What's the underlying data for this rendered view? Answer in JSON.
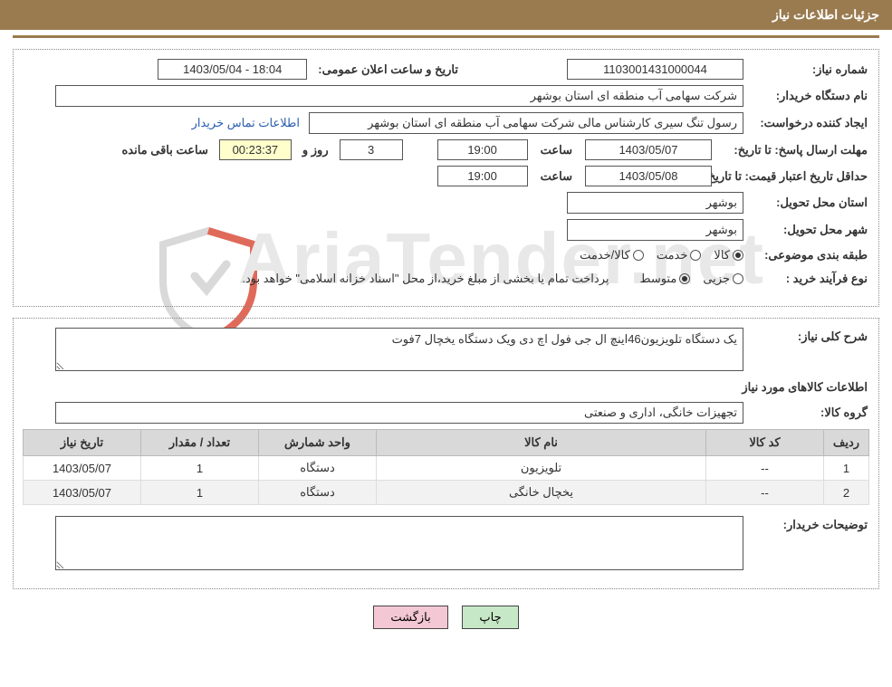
{
  "header": {
    "title": "جزئیات اطلاعات نیاز"
  },
  "watermark": {
    "text_a": "AriaTender",
    "text_b": ".net",
    "shield_stroke": "#d04b3a"
  },
  "top": {
    "need_no_label": "شماره نیاز:",
    "need_no": "1103001431000044",
    "announce_label": "تاریخ و ساعت اعلان عمومی:",
    "announce_value": "1403/05/04 - 18:04",
    "buyer_label": "نام دستگاه خریدار:",
    "buyer_value": "شرکت سهامی آب منطقه ای استان بوشهر",
    "creator_label": "ایجاد کننده درخواست:",
    "creator_value": "رسول تنگ سیری کارشناس مالی شرکت سهامی آب منطقه ای استان بوشهر",
    "buyer_contact_link": "اطلاعات تماس خریدار",
    "deadline_label": "مهلت ارسال پاسخ: تا تاریخ:",
    "deadline_date": "1403/05/07",
    "time_label": "ساعت",
    "deadline_time": "19:00",
    "days_and_label": "روز و",
    "remaining_days": "3",
    "remaining_time": "00:23:37",
    "remaining_suffix": "ساعت باقی مانده",
    "validity_label": "حداقل تاریخ اعتبار قیمت: تا تاریخ:",
    "validity_date": "1403/05/08",
    "validity_time": "19:00",
    "delivery_province_label": "استان محل تحویل:",
    "delivery_province": "بوشهر",
    "delivery_city_label": "شهر محل تحویل:",
    "delivery_city": "بوشهر",
    "classification_label": "طبقه بندی موضوعی:",
    "class_goods": "کالا",
    "class_service": "خدمت",
    "class_goods_service": "کالا/خدمت",
    "class_selected": "goods",
    "purchase_type_label": "نوع فرآیند خرید :",
    "purchase_minor": "جزیی",
    "purchase_medium": "متوسط",
    "purchase_selected": "medium",
    "purchase_note": "پرداخت تمام یا بخشی از مبلغ خرید،از محل \"اسناد خزانه اسلامی\" خواهد بود."
  },
  "need": {
    "desc_label": "شرح کلی نیاز:",
    "desc_value": "یک دستگاه تلویزیون46اینچ ال جی فول اچ دی ویک دستگاه یخچال 7فوت",
    "items_title": "اطلاعات کالاهای مورد نیاز",
    "group_label": "گروه کالا:",
    "group_value": "تجهیزات خانگی، اداری و صنعتی",
    "table": {
      "columns": [
        "ردیف",
        "کد کالا",
        "نام کالا",
        "واحد شمارش",
        "تعداد / مقدار",
        "تاریخ نیاز"
      ],
      "col_widths": [
        "50px",
        "130px",
        "auto",
        "130px",
        "130px",
        "130px"
      ],
      "rows": [
        [
          "1",
          "--",
          "تلویزیون",
          "دستگاه",
          "1",
          "1403/05/07"
        ],
        [
          "2",
          "--",
          "یخچال خانگی",
          "دستگاه",
          "1",
          "1403/05/07"
        ]
      ]
    },
    "buyer_notes_label": "توضیحات خریدار:",
    "buyer_notes_value": ""
  },
  "buttons": {
    "print": "چاپ",
    "back": "بازگشت"
  },
  "colors": {
    "header_bg": "#9a7b4f",
    "header_fg": "#ffffff",
    "border": "#555555",
    "link": "#2a5db0",
    "th_bg": "#d9d9d9",
    "btn_print_bg": "#c7e8c7",
    "btn_back_bg": "#f4c7d4"
  }
}
